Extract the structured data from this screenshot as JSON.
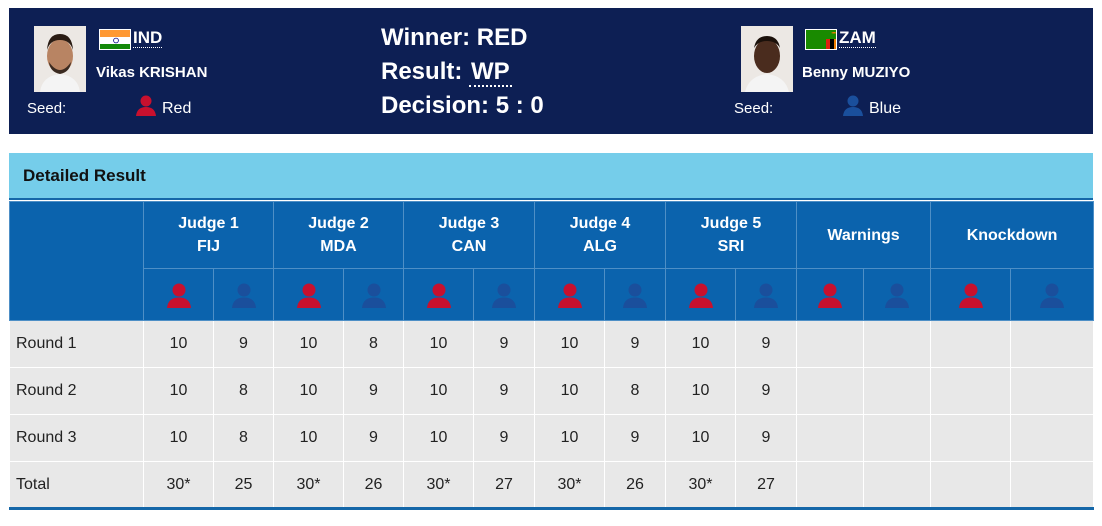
{
  "red_corner": {
    "noc": "IND",
    "name": "Vikas KRISHAN",
    "seed_label": "Seed:",
    "seed_value": "Red",
    "flag": "india-flag"
  },
  "blue_corner": {
    "noc": "ZAM",
    "name": "Benny MUZIYO",
    "seed_label": "Seed:",
    "seed_value": "Blue",
    "flag": "zambia-flag"
  },
  "result": {
    "winner": "Winner: RED",
    "result_label": "Result:",
    "result_value": "WP",
    "decision_label": "Decision:",
    "decision_value": "5 : 0"
  },
  "detail_title": "Detailed Result",
  "table": {
    "headers": [
      {
        "line1": "Judge 1",
        "line2": "FIJ"
      },
      {
        "line1": "Judge 2",
        "line2": "MDA"
      },
      {
        "line1": "Judge 3",
        "line2": "CAN"
      },
      {
        "line1": "Judge 4",
        "line2": "ALG"
      },
      {
        "line1": "Judge 5",
        "line2": "SRI"
      },
      {
        "line1": "Warnings",
        "line2": ""
      },
      {
        "line1": "Knockdown",
        "line2": ""
      }
    ],
    "rows": [
      {
        "label": "Round 1",
        "cells": [
          "10",
          "9",
          "10",
          "8",
          "10",
          "9",
          "10",
          "9",
          "10",
          "9",
          "",
          "",
          "",
          ""
        ]
      },
      {
        "label": "Round 2",
        "cells": [
          "10",
          "8",
          "10",
          "9",
          "10",
          "9",
          "10",
          "8",
          "10",
          "9",
          "",
          "",
          "",
          ""
        ]
      },
      {
        "label": "Round 3",
        "cells": [
          "10",
          "8",
          "10",
          "9",
          "10",
          "9",
          "10",
          "9",
          "10",
          "9",
          "",
          "",
          "",
          ""
        ]
      },
      {
        "label": "Total",
        "cells": [
          "30*",
          "25",
          "30*",
          "26",
          "30*",
          "27",
          "30*",
          "26",
          "30*",
          "27",
          "",
          "",
          "",
          ""
        ]
      }
    ]
  },
  "colors": {
    "header_bg": "#0d1f54",
    "detail_bar": "#75cdea",
    "table_header": "#0b63ad",
    "red_icon": "#c8102e",
    "blue_icon": "#1a4f9c"
  }
}
